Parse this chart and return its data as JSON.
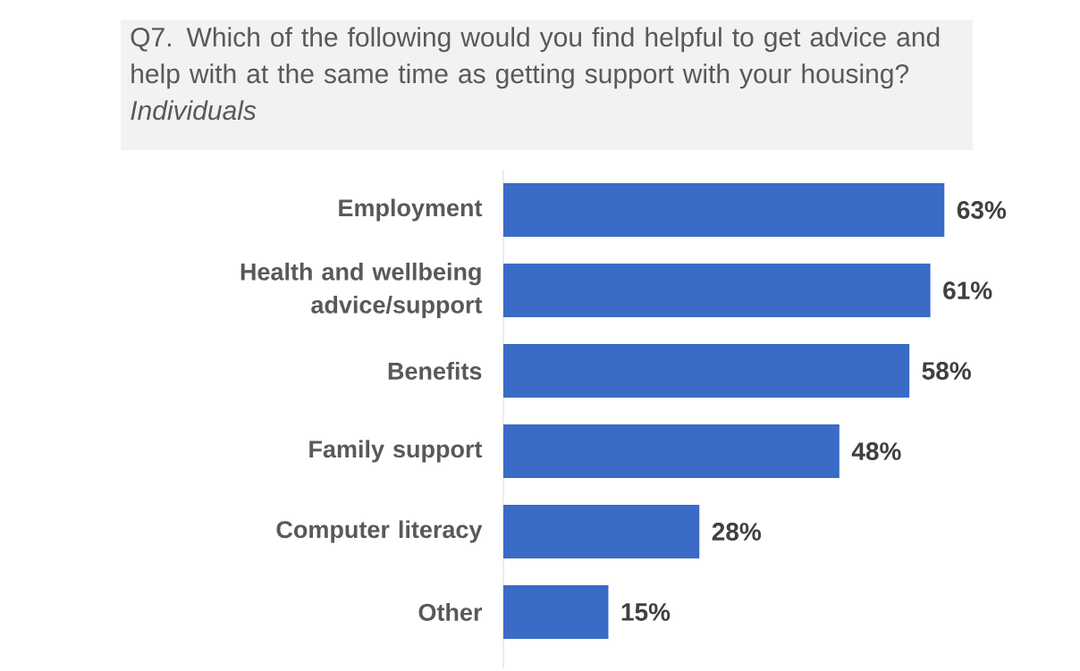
{
  "chart_data": {
    "type": "bar",
    "orientation": "horizontal",
    "title": "Q7. Which of the following would you find helpful to get advice and help with at the same time as getting support with your housing? *Individuals*",
    "categories": [
      "Employment",
      "Health and wellbeing advice/support",
      "Benefits",
      "Family support",
      "Computer literacy",
      "Other"
    ],
    "values": [
      63,
      61,
      58,
      48,
      28,
      15
    ],
    "value_labels": [
      "63%",
      "61%",
      "58%",
      "48%",
      "28%",
      "15%"
    ],
    "color": "#3a6bc6"
  }
}
